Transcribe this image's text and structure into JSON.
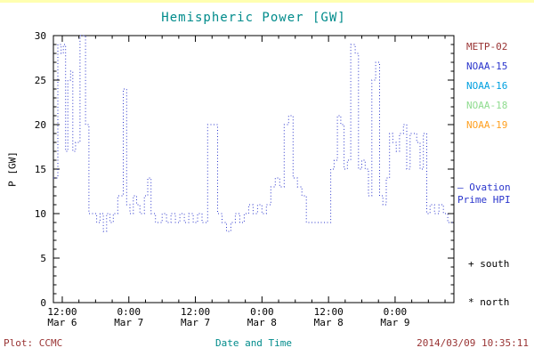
{
  "colors": {
    "title_teal": "#008b8b",
    "axis": "#000000",
    "line_blue": "#2a35cc",
    "footer_red": "#993333"
  },
  "chart_data": {
    "type": "line",
    "subtype": "stepped-dotted",
    "title": "Hemispheric Power [GW]",
    "xlabel": "Date and Time",
    "ylabel": "P [GW]",
    "ylim": [
      0,
      30
    ],
    "xlim_hours": [
      10.4,
      82.6
    ],
    "x_hours_reference": "hours since Mar 6 00:00",
    "y_ticks": [
      0,
      5,
      10,
      15,
      20,
      25,
      30
    ],
    "x_ticks": [
      {
        "hour": 12,
        "time": "12:00",
        "date": "Mar 6"
      },
      {
        "hour": 24,
        "time": "0:00",
        "date": "Mar 7"
      },
      {
        "hour": 36,
        "time": "12:00",
        "date": "Mar 7"
      },
      {
        "hour": 48,
        "time": "0:00",
        "date": "Mar 8"
      },
      {
        "hour": 60,
        "time": "12:00",
        "date": "Mar 8"
      },
      {
        "hour": 72,
        "time": "0:00",
        "date": "Mar 9"
      }
    ],
    "grid": false,
    "legend_position": "right",
    "series": [
      {
        "name": "Ovation Prime HPI",
        "color": "#2a35cc",
        "units": "GW",
        "points": [
          [
            10.4,
            14
          ],
          [
            11.2,
            29
          ],
          [
            11.8,
            28
          ],
          [
            12.2,
            29
          ],
          [
            12.6,
            17
          ],
          [
            13.0,
            25
          ],
          [
            13.5,
            26
          ],
          [
            13.9,
            17
          ],
          [
            14.4,
            18
          ],
          [
            15.2,
            30
          ],
          [
            16.2,
            20
          ],
          [
            16.8,
            10
          ],
          [
            17.6,
            10
          ],
          [
            18.2,
            9
          ],
          [
            18.8,
            10
          ],
          [
            19.4,
            8
          ],
          [
            20.0,
            10
          ],
          [
            20.6,
            9
          ],
          [
            21.2,
            10
          ],
          [
            22.0,
            12
          ],
          [
            23.0,
            24
          ],
          [
            23.6,
            11
          ],
          [
            24.2,
            10
          ],
          [
            24.8,
            12
          ],
          [
            25.4,
            11
          ],
          [
            26.0,
            10
          ],
          [
            26.8,
            12
          ],
          [
            27.4,
            14
          ],
          [
            28.0,
            10
          ],
          [
            28.8,
            9
          ],
          [
            30.0,
            10
          ],
          [
            30.8,
            9
          ],
          [
            31.6,
            10
          ],
          [
            32.4,
            9
          ],
          [
            33.2,
            10
          ],
          [
            34.0,
            9
          ],
          [
            34.8,
            10
          ],
          [
            35.6,
            9
          ],
          [
            36.4,
            10
          ],
          [
            37.2,
            9
          ],
          [
            38.2,
            20
          ],
          [
            39.2,
            20
          ],
          [
            40.0,
            10
          ],
          [
            40.8,
            9
          ],
          [
            41.6,
            8
          ],
          [
            42.4,
            9
          ],
          [
            43.2,
            10
          ],
          [
            44.0,
            9
          ],
          [
            44.8,
            10
          ],
          [
            45.6,
            11
          ],
          [
            46.4,
            10
          ],
          [
            47.2,
            11
          ],
          [
            48.0,
            10
          ],
          [
            48.8,
            11
          ],
          [
            49.6,
            13
          ],
          [
            50.4,
            14
          ],
          [
            51.2,
            13
          ],
          [
            52.0,
            20
          ],
          [
            52.8,
            21
          ],
          [
            53.6,
            14
          ],
          [
            54.4,
            13
          ],
          [
            55.2,
            12
          ],
          [
            56.0,
            9
          ],
          [
            60.4,
            15
          ],
          [
            61.0,
            16
          ],
          [
            61.6,
            21
          ],
          [
            62.2,
            20
          ],
          [
            62.8,
            15
          ],
          [
            63.4,
            16
          ],
          [
            64.0,
            29
          ],
          [
            64.8,
            28
          ],
          [
            65.4,
            15
          ],
          [
            66.0,
            16
          ],
          [
            66.6,
            15
          ],
          [
            67.2,
            12
          ],
          [
            67.8,
            25
          ],
          [
            68.5,
            27
          ],
          [
            69.2,
            12
          ],
          [
            69.8,
            11
          ],
          [
            70.4,
            14
          ],
          [
            71.0,
            19
          ],
          [
            71.6,
            18
          ],
          [
            72.2,
            17
          ],
          [
            72.8,
            19
          ],
          [
            73.5,
            20
          ],
          [
            74.1,
            15
          ],
          [
            74.7,
            19
          ],
          [
            75.3,
            19
          ],
          [
            75.9,
            18
          ],
          [
            76.5,
            15
          ],
          [
            77.1,
            19
          ],
          [
            77.7,
            10
          ],
          [
            78.3,
            11
          ],
          [
            79.1,
            10
          ],
          [
            79.9,
            11
          ],
          [
            80.7,
            10
          ],
          [
            81.5,
            9
          ],
          [
            82.5,
            9
          ]
        ]
      }
    ]
  },
  "legend": {
    "items": [
      {
        "label": "METP-02",
        "color": "#993333"
      },
      {
        "label": "NOAA-15",
        "color": "#2a35cc"
      },
      {
        "label": "NOAA-16",
        "color": "#00a0e0"
      },
      {
        "label": "NOAA-18",
        "color": "#8fdc8f"
      },
      {
        "label": "NOAA-19",
        "color": "#ffa020"
      }
    ]
  },
  "annotations": {
    "ovation_line1": "— Ovation",
    "ovation_line2": "Prime HPI",
    "south": "+ south",
    "north": "* north"
  },
  "footer": {
    "left": "Plot: CCMC",
    "right": "2014/03/09 10:35:11"
  }
}
